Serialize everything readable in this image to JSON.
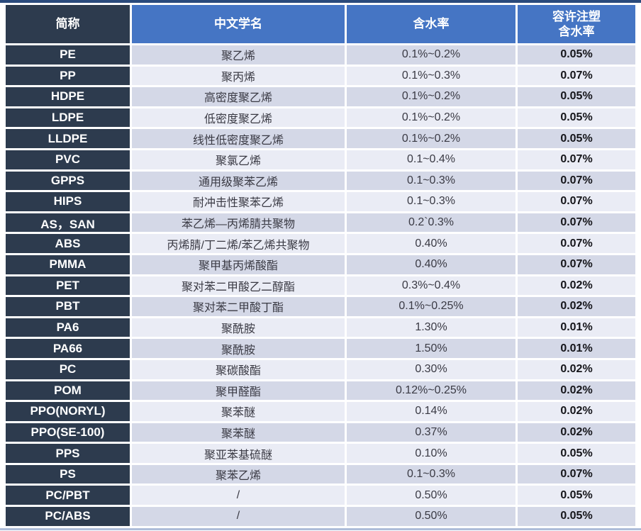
{
  "colors": {
    "header_bg": "#4575c4",
    "header_text": "#ffffff",
    "abbr_bg": "#2d3b4e",
    "abbr_text": "#ffffff",
    "row_odd": "#d4d8e7",
    "row_even": "#eaecf5",
    "cell_text": "#3a3a44",
    "bold_cell_text": "#15151a",
    "top_rule": "#2a4a7c",
    "bottom_rule": "#aebdd9"
  },
  "table": {
    "columns": [
      {
        "key": "abbreviation",
        "label": "简称"
      },
      {
        "key": "chinese-name",
        "label": "中文学名"
      },
      {
        "key": "moisture-content",
        "label": "含水率"
      },
      {
        "key": "allowed-injection-moisture",
        "label": "容许注塑\n含水率"
      }
    ]
  },
  "chart_data": {
    "type": "table",
    "columns": [
      "简称",
      "中文学名",
      "含水率",
      "容许注塑含水率"
    ],
    "rows": [
      [
        "PE",
        "聚乙烯",
        "0.1%~0.2%",
        "0.05%"
      ],
      [
        "PP",
        "聚丙烯",
        "0.1%~0.3%",
        "0.07%"
      ],
      [
        "HDPE",
        "高密度聚乙烯",
        "0.1%~0.2%",
        "0.05%"
      ],
      [
        "LDPE",
        "低密度聚乙烯",
        "0.1%~0.2%",
        "0.05%"
      ],
      [
        "LLDPE",
        "线性低密度聚乙烯",
        "0.1%~0.2%",
        "0.05%"
      ],
      [
        "PVC",
        "聚氯乙烯",
        "0.1~0.4%",
        "0.07%"
      ],
      [
        "GPPS",
        "通用级聚苯乙烯",
        "0.1~0.3%",
        "0.07%"
      ],
      [
        "HIPS",
        "耐冲击性聚苯乙烯",
        "0.1~0.3%",
        "0.07%"
      ],
      [
        "AS，SAN",
        "苯乙烯—丙烯腈共聚物",
        "0.2`0.3%",
        "0.07%"
      ],
      [
        "ABS",
        "丙烯腈/丁二烯/苯乙烯共聚物",
        "0.40%",
        "0.07%"
      ],
      [
        "PMMA",
        "聚甲基丙烯酸酯",
        "0.40%",
        "0.07%"
      ],
      [
        "PET",
        "聚对苯二甲酸乙二醇酯",
        "0.3%~0.4%",
        "0.02%"
      ],
      [
        "PBT",
        "聚对苯二甲酸丁酯",
        "0.1%~0.25%",
        "0.02%"
      ],
      [
        "PA6",
        "聚酰胺",
        "1.30%",
        "0.01%"
      ],
      [
        "PA66",
        "聚酰胺",
        "1.50%",
        "0.01%"
      ],
      [
        "PC",
        "聚碳酸酯",
        "0.30%",
        "0.02%"
      ],
      [
        "POM",
        "聚甲醛酯",
        "0.12%~0.25%",
        "0.02%"
      ],
      [
        "PPO(NORYL)",
        "聚苯醚",
        "0.14%",
        "0.02%"
      ],
      [
        "PPO(SE-100)",
        "聚苯醚",
        "0.37%",
        "0.02%"
      ],
      [
        "PPS",
        "聚亚苯基硫醚",
        "0.10%",
        "0.05%"
      ],
      [
        "PS",
        "聚苯乙烯",
        "0.1~0.3%",
        "0.07%"
      ],
      [
        "PC/PBT",
        "/",
        "0.50%",
        "0.05%"
      ],
      [
        "PC/ABS",
        "/",
        "0.50%",
        "0.05%"
      ]
    ]
  }
}
